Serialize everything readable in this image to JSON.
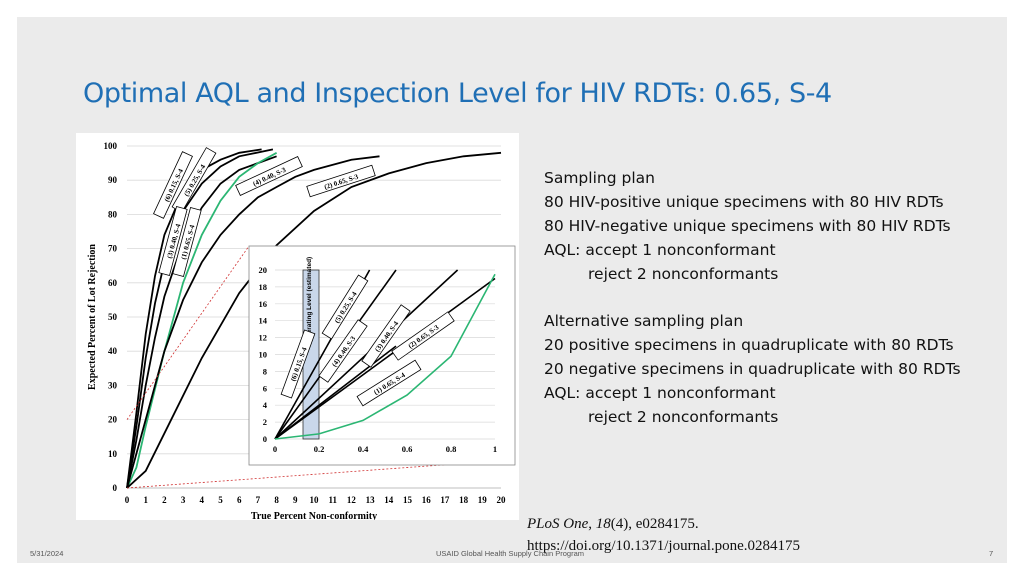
{
  "slide": {
    "title": "Optimal AQL and Inspection Level for HIV RDTs: 0.65, S-4",
    "sampling_plan": [
      "Sampling plan",
      "80 HIV-positive unique specimens with 80 HIV RDTs",
      "80 HIV-negative unique specimens with 80 HIV RDTs",
      "AQL: accept 1 nonconformant",
      "reject 2 nonconformants"
    ],
    "alt_plan": [
      "Alternative sampling plan",
      "20 positive specimens in quadruplicate with 80 RDTs",
      "20 negative specimens in quadruplicate with 80 RDTs",
      "AQL: accept 1 nonconformant",
      "reject 2 nonconformants"
    ],
    "citation_journal": "PlosOne",
    "citation_journal_name": "PLoS One",
    "citation_volume": "18",
    "citation_rest": "(4), e0284175.",
    "citation_doi": "https://doi.org/10.1371/journal.pone.0284175",
    "footer_date": "5/31/2024",
    "footer_org": "USAID Global Health Supply Chain Program",
    "footer_page": "7"
  },
  "chart_data": [
    {
      "type": "line",
      "xlabel": "True Percent Non-conformity",
      "ylabel": "Expected Percent of Lot Rejection",
      "xlim": [
        0,
        20
      ],
      "ylim": [
        0,
        100
      ],
      "x_ticks": [
        0,
        1,
        2,
        3,
        4,
        5,
        6,
        7,
        8,
        9,
        10,
        11,
        12,
        13,
        14,
        15,
        16,
        17,
        18,
        19,
        20
      ],
      "y_ticks": [
        0,
        10,
        20,
        30,
        40,
        50,
        60,
        70,
        80,
        90,
        100
      ],
      "grid": true,
      "series": [
        {
          "name": "(6) 0.15, S-4",
          "color": "#000000",
          "x": [
            0,
            0.5,
            1,
            1.5,
            2,
            3,
            4,
            5,
            6,
            7.2
          ],
          "y": [
            0,
            22,
            45,
            62,
            74,
            87,
            93,
            96,
            98,
            99
          ]
        },
        {
          "name": "(5) 0.25, S-4",
          "color": "#000000",
          "x": [
            0,
            0.5,
            1,
            1.5,
            2,
            3,
            4,
            5,
            6,
            7.8
          ],
          "y": [
            0,
            18,
            38,
            54,
            66,
            81,
            89,
            94,
            97,
            99
          ]
        },
        {
          "name": "(3) 0.40, S-4",
          "color": "#000000",
          "x": [
            0,
            0.5,
            1,
            1.5,
            2,
            3,
            4,
            5,
            6,
            7,
            8
          ],
          "y": [
            0,
            14,
            30,
            44,
            56,
            72,
            82,
            89,
            93,
            95,
            97
          ]
        },
        {
          "name": "(1) 0.65, S-4",
          "color": "#2bb673",
          "x": [
            0,
            0.5,
            1,
            2,
            3,
            4,
            5,
            6,
            7,
            8
          ],
          "y": [
            0,
            6,
            18,
            40,
            60,
            74,
            84,
            91,
            95,
            98
          ]
        },
        {
          "name": "(4) 0.40, S-3",
          "color": "#000000",
          "x": [
            0,
            1,
            2,
            3,
            4,
            5,
            6,
            7,
            8,
            9,
            10,
            12,
            13.5
          ],
          "y": [
            0,
            20,
            40,
            55,
            66,
            74,
            80,
            85,
            88,
            91,
            93,
            96,
            97
          ]
        },
        {
          "name": "(2) 0.65, S-3",
          "color": "#000000",
          "x": [
            0,
            1,
            2,
            4,
            6,
            8,
            10,
            12,
            14,
            16,
            18,
            20
          ],
          "y": [
            0,
            5,
            16,
            38,
            57,
            71,
            81,
            88,
            92,
            95,
            97,
            98
          ]
        }
      ],
      "series_labels": [
        "(6) 0.15, S-4",
        "(5) 0.25, S-4",
        "(3) 0.40, S-4",
        "(1) 0.65, S-4",
        "(4) 0.40, S-3",
        "(2) 0.65, S-3"
      ]
    },
    {
      "type": "line",
      "xlim": [
        0,
        1
      ],
      "ylim": [
        0,
        20
      ],
      "x_ticks": [
        "0",
        "0.2",
        "0.4",
        "0.6",
        "0.8",
        "1"
      ],
      "y_ticks": [
        0,
        2,
        4,
        6,
        8,
        10,
        12,
        14,
        16,
        18,
        20
      ],
      "grid": true,
      "shaded_region_label": "Operating Level (estimated)",
      "shaded_region_x": [
        0,
        0.2
      ],
      "series": [
        {
          "name": "(6) 0.15, S-4",
          "color": "#000000",
          "x": [
            0,
            0.43
          ],
          "y": [
            0,
            20
          ]
        },
        {
          "name": "(5) 0.25, S-4",
          "color": "#000000",
          "x": [
            0,
            0.55
          ],
          "y": [
            0,
            20
          ]
        },
        {
          "name": "(4) 0.40, S-3",
          "color": "#000000",
          "x": [
            0,
            0.55
          ],
          "y": [
            0,
            11
          ]
        },
        {
          "name": "(3) 0.40, S-4",
          "color": "#000000",
          "x": [
            0,
            0.83
          ],
          "y": [
            0,
            20
          ]
        },
        {
          "name": "(2) 0.65, S-3",
          "color": "#000000",
          "x": [
            0,
            1.0
          ],
          "y": [
            0,
            19
          ]
        },
        {
          "name": "(1) 0.65, S-4",
          "color": "#2bb673",
          "x": [
            0,
            0.2,
            0.4,
            0.6,
            0.8,
            1.0
          ],
          "y": [
            0,
            0.6,
            2.2,
            5.2,
            9.8,
            19.5
          ]
        }
      ],
      "series_labels": [
        "(6) 0.15, S-4",
        "(5) 0.25, S-4",
        "(4) 0.40, S-3",
        "(3) 0.40, S-4",
        "(2) 0.65, S-3",
        "(1) 0.65, S-4"
      ]
    }
  ]
}
